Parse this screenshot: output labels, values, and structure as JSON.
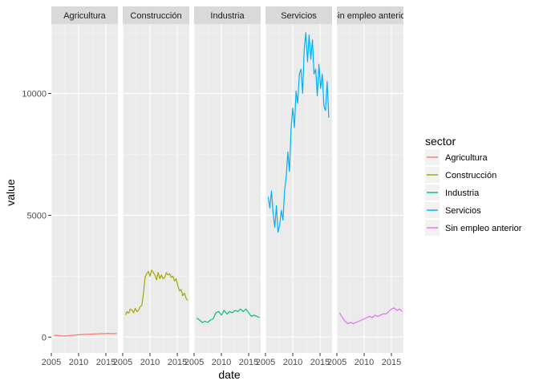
{
  "chart_data": {
    "type": "line",
    "xlabel": "date",
    "ylabel": "value",
    "xlim": [
      2005.0,
      2017.2
    ],
    "ylim": [
      -650,
      12850
    ],
    "x_ticks": [
      2005,
      2010,
      2015
    ],
    "x_tick_labels": [
      "2005",
      "2010",
      "2015"
    ],
    "y_ticks": [
      0,
      5000,
      10000
    ],
    "y_tick_labels": [
      "0",
      "5000",
      "10000"
    ],
    "grid": true,
    "legend": {
      "title": "sector",
      "position": "right"
    },
    "facets": [
      "Agricultura",
      "Construcción",
      "Industria",
      "Servicios",
      "Sin empleo anterior"
    ],
    "series": [
      {
        "name": "Agricultura",
        "color": "#F8766D",
        "x": [
          2005.5,
          2006.0,
          2006.5,
          2007.0,
          2007.5,
          2008.0,
          2008.5,
          2009.0,
          2009.5,
          2010.0,
          2010.5,
          2011.0,
          2011.5,
          2012.0,
          2012.5,
          2013.0,
          2013.5,
          2014.0,
          2014.5,
          2015.0,
          2015.5,
          2016.0,
          2016.5,
          2017.0
        ],
        "y": [
          60,
          75,
          55,
          45,
          40,
          50,
          60,
          75,
          85,
          95,
          105,
          110,
          115,
          120,
          125,
          130,
          135,
          140,
          140,
          145,
          150,
          145,
          140,
          150
        ]
      },
      {
        "name": "Construcción",
        "color": "#A3A500",
        "x": [
          2005.5,
          2005.8,
          2006.1,
          2006.4,
          2006.7,
          2007.0,
          2007.3,
          2007.6,
          2007.9,
          2008.2,
          2008.5,
          2008.8,
          2009.1,
          2009.4,
          2009.7,
          2010.0,
          2010.3,
          2010.6,
          2010.9,
          2011.2,
          2011.5,
          2011.8,
          2012.1,
          2012.4,
          2012.7,
          2013.0,
          2013.3,
          2013.6,
          2013.9,
          2014.2,
          2014.5,
          2014.8,
          2015.1,
          2015.4,
          2015.7,
          2016.0,
          2016.3,
          2016.6,
          2016.9
        ],
        "y": [
          900,
          1050,
          980,
          1150,
          1100,
          1000,
          1180,
          1050,
          1100,
          1250,
          1300,
          1800,
          2450,
          2600,
          2700,
          2500,
          2750,
          2650,
          2550,
          2350,
          2650,
          2400,
          2550,
          2400,
          2450,
          2650,
          2550,
          2600,
          2450,
          2500,
          2300,
          2400,
          2100,
          1900,
          1950,
          1700,
          1800,
          1600,
          1500
        ]
      },
      {
        "name": "Industria",
        "color": "#00BF7D",
        "x": [
          2005.5,
          2006.0,
          2006.5,
          2007.0,
          2007.5,
          2008.0,
          2008.5,
          2009.0,
          2009.5,
          2010.0,
          2010.5,
          2011.0,
          2011.5,
          2012.0,
          2012.5,
          2013.0,
          2013.5,
          2014.0,
          2014.5,
          2015.0,
          2015.5,
          2016.0,
          2016.5,
          2017.0
        ],
        "y": [
          780,
          700,
          600,
          650,
          600,
          700,
          750,
          1000,
          1050,
          900,
          1100,
          950,
          1050,
          1000,
          1100,
          1050,
          1150,
          1050,
          1150,
          1000,
          850,
          900,
          850,
          800
        ]
      },
      {
        "name": "Servicios",
        "color": "#00B0F6",
        "x": [
          2005.5,
          2005.8,
          2006.1,
          2006.4,
          2006.7,
          2007.0,
          2007.3,
          2007.6,
          2007.9,
          2008.2,
          2008.5,
          2008.8,
          2009.1,
          2009.4,
          2009.7,
          2010.0,
          2010.3,
          2010.6,
          2010.9,
          2011.2,
          2011.5,
          2011.8,
          2012.1,
          2012.4,
          2012.7,
          2013.0,
          2013.3,
          2013.6,
          2013.9,
          2014.2,
          2014.5,
          2014.8,
          2015.1,
          2015.4,
          2015.7,
          2016.0,
          2016.3,
          2016.6
        ],
        "y": [
          5750,
          5300,
          6000,
          5100,
          4500,
          5400,
          4300,
          4600,
          5200,
          4800,
          6000,
          6600,
          7600,
          6800,
          8600,
          9400,
          8600,
          10100,
          9600,
          10800,
          11000,
          10000,
          11800,
          12500,
          11300,
          12400,
          11400,
          12200,
          10800,
          11000,
          9900,
          11200,
          10200,
          10800,
          9500,
          9300,
          10500,
          9000
        ]
      },
      {
        "name": "Sin empleo anterior",
        "color": "#E76BF3",
        "x": [
          2005.5,
          2006.0,
          2006.5,
          2007.0,
          2007.5,
          2008.0,
          2008.5,
          2009.0,
          2009.5,
          2010.0,
          2010.5,
          2011.0,
          2011.5,
          2012.0,
          2012.5,
          2013.0,
          2013.5,
          2014.0,
          2014.5,
          2015.0,
          2015.5,
          2016.0,
          2016.5,
          2017.0
        ],
        "y": [
          1000,
          800,
          650,
          550,
          600,
          550,
          600,
          650,
          700,
          750,
          800,
          850,
          800,
          900,
          850,
          900,
          950,
          950,
          1050,
          1150,
          1200,
          1100,
          1150,
          1050
        ]
      }
    ]
  }
}
